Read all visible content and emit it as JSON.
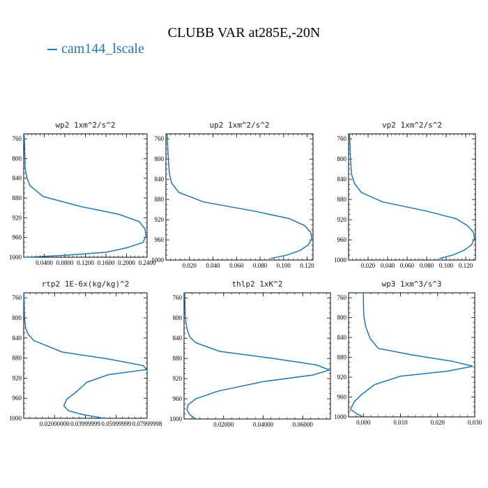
{
  "title": "CLUBB VAR at285E,-20N",
  "legend": {
    "label": "cam144_lscale",
    "color": "#1f77b4"
  },
  "chart_data": [
    {
      "type": "line",
      "title": "wp2   1xm^2/s^2",
      "xlim": [
        0,
        0.24
      ],
      "ylim": [
        1000,
        750
      ],
      "xticks": [
        0.04,
        0.08,
        0.12,
        0.16,
        0.2,
        0.24
      ],
      "xticklabels": [
        "0.0400",
        "0.0800",
        "0.1200",
        "0.1600",
        "0.2000",
        "0.2400"
      ],
      "yticks": [
        760,
        800,
        840,
        880,
        920,
        960,
        1000
      ],
      "series": [
        {
          "y": [
            750,
            790,
            820,
            838,
            855,
            877,
            897,
            913,
            928,
            943,
            957,
            970,
            981,
            990,
            996,
            1000
          ],
          "x": [
            0.001,
            0.002,
            0.003,
            0.006,
            0.012,
            0.038,
            0.11,
            0.185,
            0.225,
            0.236,
            0.238,
            0.232,
            0.2,
            0.16,
            0.08,
            0.005
          ]
        }
      ]
    },
    {
      "type": "line",
      "title": "up2   1xm^2/s^2",
      "xlim": [
        0,
        0.125
      ],
      "ylim": [
        1000,
        750
      ],
      "xticks": [
        0.02,
        0.04,
        0.06,
        0.08,
        0.1,
        0.12
      ],
      "xticklabels": [
        "0.020",
        "0.040",
        "0.060",
        "0.080",
        "0.100",
        "0.120"
      ],
      "yticks": [
        760,
        800,
        840,
        880,
        920,
        960,
        1000
      ],
      "series": [
        {
          "y": [
            750,
            800,
            830,
            848,
            866,
            885,
            903,
            918,
            932,
            945,
            958,
            970,
            981,
            990,
            997
          ],
          "x": [
            0.001,
            0.002,
            0.003,
            0.005,
            0.011,
            0.032,
            0.075,
            0.105,
            0.118,
            0.123,
            0.124,
            0.121,
            0.114,
            0.103,
            0.089
          ]
        }
      ]
    },
    {
      "type": "line",
      "title": "vp2   1xm^2/s^2",
      "xlim": [
        0,
        0.13
      ],
      "ylim": [
        1000,
        750
      ],
      "xticks": [
        0.02,
        0.04,
        0.06,
        0.08,
        0.1,
        0.12
      ],
      "xticklabels": [
        "0.020",
        "0.040",
        "0.060",
        "0.080",
        "0.100",
        "0.120"
      ],
      "yticks": [
        760,
        800,
        840,
        880,
        920,
        960,
        1000
      ],
      "series": [
        {
          "y": [
            750,
            800,
            830,
            848,
            866,
            885,
            903,
            918,
            932,
            945,
            958,
            970,
            981,
            990,
            997
          ],
          "x": [
            0.001,
            0.002,
            0.003,
            0.006,
            0.013,
            0.035,
            0.08,
            0.11,
            0.122,
            0.128,
            0.129,
            0.126,
            0.118,
            0.107,
            0.093
          ]
        }
      ]
    },
    {
      "type": "line",
      "title": "rtp2   1E-6x(kg/kg)^2",
      "xlim": [
        0,
        0.08
      ],
      "ylim": [
        1000,
        750
      ],
      "xticks": [
        0.02,
        0.04,
        0.06,
        0.08
      ],
      "xticklabels": [
        "0.02000000",
        "0.03999999",
        "0.05999999",
        "0.07999998"
      ],
      "yticks": [
        760,
        800,
        840,
        880,
        920,
        960,
        1000
      ],
      "series": [
        {
          "y": [
            750,
            800,
            820,
            833,
            845,
            868,
            882,
            895,
            903,
            913,
            928,
            945,
            962,
            975,
            985,
            993,
            1000
          ],
          "x": [
            0.0002,
            0.0005,
            0.0012,
            0.003,
            0.0065,
            0.025,
            0.055,
            0.0775,
            0.0795,
            0.055,
            0.041,
            0.035,
            0.028,
            0.026,
            0.029,
            0.039,
            0.052
          ]
        }
      ]
    },
    {
      "type": "line",
      "title": "thlp2   1xK^2",
      "xlim": [
        0,
        0.074
      ],
      "ylim": [
        1000,
        750
      ],
      "xticks": [
        0.02,
        0.04,
        0.06
      ],
      "xticklabels": [
        "0.02000",
        "0.04000",
        "0.06000"
      ],
      "yticks": [
        760,
        800,
        840,
        880,
        920,
        960,
        1000
      ],
      "series": [
        {
          "y": [
            750,
            800,
            822,
            838,
            849,
            866,
            880,
            893,
            903,
            913,
            926,
            945,
            960,
            972,
            982,
            992,
            1000
          ],
          "x": [
            0.0003,
            0.0006,
            0.0015,
            0.003,
            0.006,
            0.018,
            0.045,
            0.067,
            0.0735,
            0.065,
            0.04,
            0.017,
            0.006,
            0.002,
            0.0015,
            0.003,
            0.006
          ]
        }
      ]
    },
    {
      "type": "line",
      "title": "wp3   1xm^3/s^3",
      "xlim": [
        -0.004,
        0.03
      ],
      "ylim": [
        1000,
        750
      ],
      "xticks": [
        0.0,
        0.01,
        0.02,
        0.03
      ],
      "xticklabels": [
        "0.000",
        "0.010",
        "0.020",
        "0.030"
      ],
      "yticks": [
        760,
        800,
        840,
        880,
        920,
        960,
        1000
      ],
      "series": [
        {
          "y": [
            750,
            770,
            795,
            818,
            842,
            862,
            875,
            888,
            898,
            908,
            918,
            935,
            955,
            970,
            985,
            995,
            1000
          ],
          "x": [
            0.0,
            0.0,
            0.0001,
            0.0006,
            0.0018,
            0.004,
            0.013,
            0.024,
            0.0295,
            0.0225,
            0.01,
            0.003,
            -0.0005,
            -0.0025,
            -0.0035,
            -0.0015,
            0.0
          ]
        }
      ]
    }
  ]
}
